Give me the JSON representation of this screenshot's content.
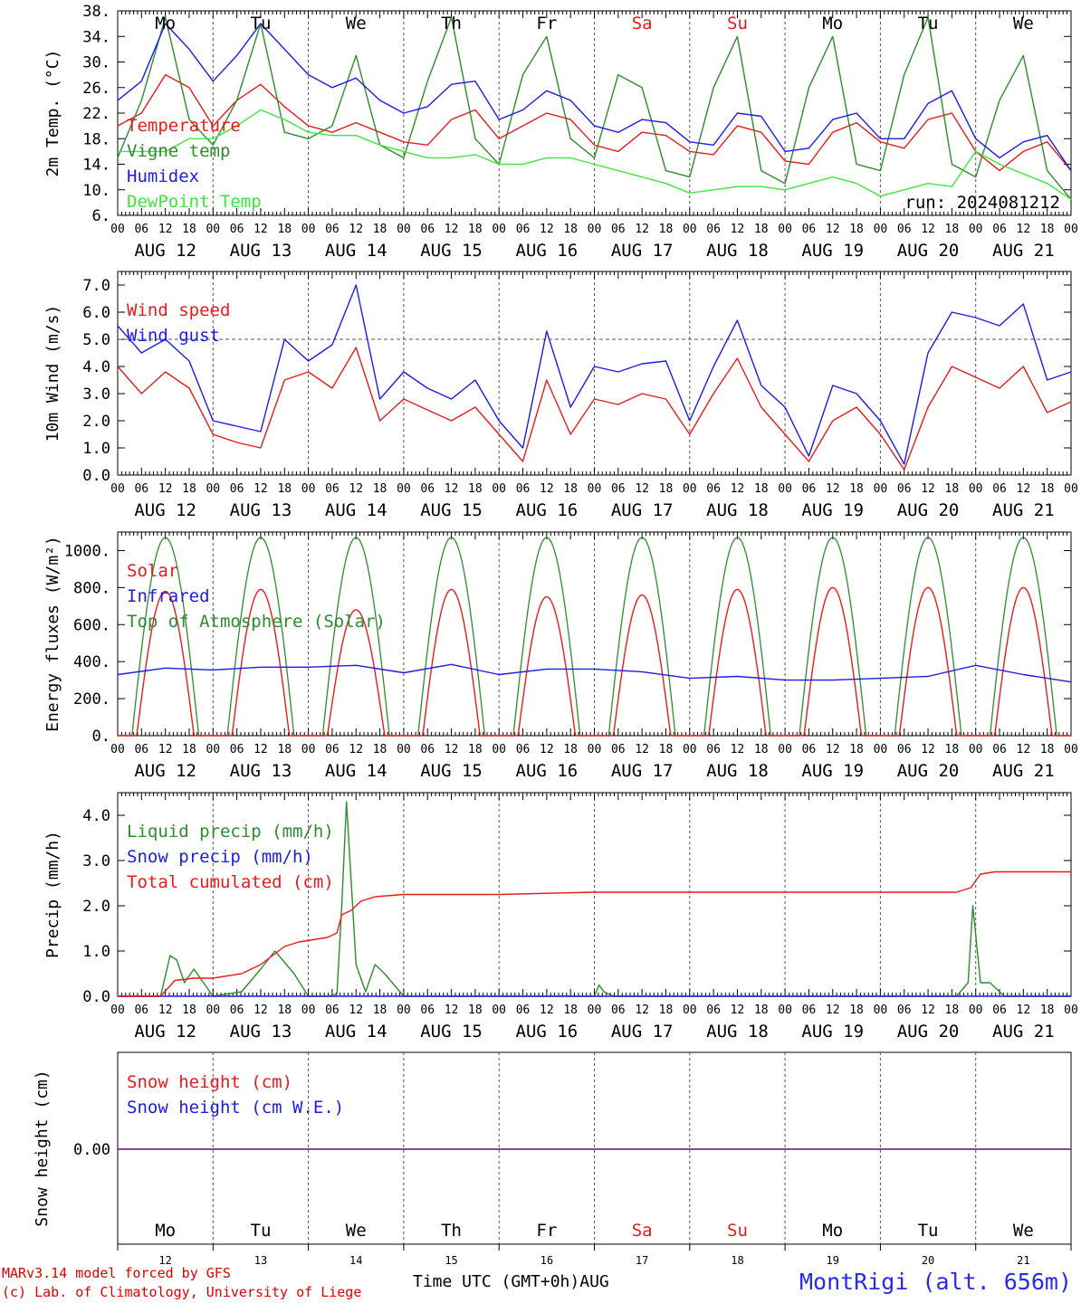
{
  "chart_data": [
    {
      "type": "line",
      "ylabel": "2m Temp. (°C)",
      "ylim": [
        6,
        38
      ],
      "yticks": [
        "6.",
        "10.",
        "14.",
        "18.",
        "22.",
        "26.",
        "30.",
        "34.",
        "38."
      ],
      "day_labels_top": [
        "Mo",
        "Tu",
        "We",
        "Th",
        "Fr",
        "Sa",
        "Su",
        "Mo",
        "Tu",
        "We"
      ],
      "date_labels": [
        "AUG 12",
        "AUG 13",
        "AUG 14",
        "AUG 15",
        "AUG 16",
        "AUG 17",
        "AUG 18",
        "AUG 19",
        "AUG 20",
        "AUG 21"
      ],
      "hour_ticks": [
        "00",
        "06",
        "12",
        "18"
      ],
      "annotation": "run: 2024081212",
      "series": [
        {
          "name": "Temperature",
          "color": "#e81c1c",
          "x": [
            0,
            0.25,
            0.5,
            0.75,
            1,
            1.25,
            1.5,
            1.75,
            2,
            2.25,
            2.5,
            2.75,
            3,
            3.25,
            3.5,
            3.75,
            4,
            4.25,
            4.5,
            4.75,
            5,
            5.25,
            5.5,
            5.75,
            6,
            6.25,
            6.5,
            6.75,
            7,
            7.25,
            7.5,
            7.75,
            8,
            8.25,
            8.5,
            8.75,
            9,
            9.25,
            9.5,
            9.75,
            10
          ],
          "y": [
            20,
            22,
            28,
            26,
            20,
            24,
            26.5,
            23,
            20,
            19,
            20.5,
            19,
            17.5,
            17,
            21,
            22.5,
            18,
            20,
            22,
            21,
            17,
            16,
            19,
            18.5,
            16,
            15.5,
            20,
            19,
            14.5,
            14,
            19,
            20.5,
            17.5,
            16.5,
            21,
            22,
            16,
            13,
            16,
            17.5,
            13
          ]
        },
        {
          "name": "Vigne temp",
          "color": "#2e8b2e",
          "x": [
            0,
            0.25,
            0.5,
            0.75,
            1,
            1.25,
            1.5,
            1.75,
            2,
            2.25,
            2.5,
            2.75,
            3,
            3.25,
            3.5,
            3.75,
            4,
            4.25,
            4.5,
            4.75,
            5,
            5.25,
            5.5,
            5.75,
            6,
            6.25,
            6.5,
            6.75,
            7,
            7.25,
            7.5,
            7.75,
            8,
            8.25,
            8.5,
            8.75,
            9,
            9.25,
            9.5,
            9.75,
            10
          ],
          "y": [
            15,
            24,
            37,
            21,
            17,
            24,
            36,
            19,
            18,
            20,
            31,
            17,
            15,
            27,
            37,
            18,
            14,
            28,
            34,
            18,
            15,
            28,
            26,
            13,
            12,
            26,
            34,
            13,
            11,
            26,
            34,
            14,
            13,
            28,
            37,
            14,
            12,
            24,
            31,
            13,
            8.5
          ]
        },
        {
          "name": "Humidex",
          "color": "#1c1ce8",
          "x": [
            0,
            0.25,
            0.5,
            0.75,
            1,
            1.25,
            1.5,
            1.75,
            2,
            2.25,
            2.5,
            2.75,
            3,
            3.25,
            3.5,
            3.75,
            4,
            4.25,
            4.5,
            4.75,
            5,
            5.25,
            5.5,
            5.75,
            6,
            6.25,
            6.5,
            6.75,
            7,
            7.25,
            7.5,
            7.75,
            8,
            8.25,
            8.5,
            8.75,
            9,
            9.25,
            9.5,
            9.75,
            10
          ],
          "y": [
            24,
            27,
            36,
            32,
            27,
            31,
            36,
            32,
            28,
            26,
            27.5,
            24,
            22,
            23,
            26.5,
            27,
            21,
            22.5,
            25.5,
            24,
            20,
            19,
            21,
            20.5,
            17.5,
            17,
            22,
            21.5,
            16,
            16.5,
            21,
            22,
            18,
            18,
            23.5,
            25.5,
            18,
            15,
            17.5,
            18.5,
            13
          ]
        },
        {
          "name": "DewPoint Temp",
          "color": "#3ce83c",
          "x": [
            0,
            0.25,
            0.5,
            0.75,
            1,
            1.25,
            1.5,
            1.75,
            2,
            2.25,
            2.5,
            2.75,
            3,
            3.25,
            3.5,
            3.75,
            4,
            4.25,
            4.5,
            4.75,
            5,
            5.25,
            5.5,
            5.75,
            6,
            6.25,
            6.5,
            6.75,
            7,
            7.25,
            7.5,
            7.75,
            8,
            8.25,
            8.5,
            8.75,
            9,
            9.25,
            9.5,
            9.75,
            10
          ],
          "y": [
            16,
            16,
            16,
            18,
            18,
            20,
            22.5,
            21,
            19,
            18.5,
            18.5,
            17,
            16,
            15,
            15,
            15.5,
            14,
            14,
            15,
            15,
            14,
            13,
            12,
            11,
            9.5,
            10,
            10.5,
            10.5,
            10,
            11,
            12,
            11,
            9,
            10,
            11,
            10.5,
            16,
            14,
            12.5,
            11,
            8.5
          ]
        }
      ]
    },
    {
      "type": "line",
      "ylabel": "10m Wind (m/s)",
      "ylim": [
        0,
        7.5
      ],
      "yticks": [
        "0.0",
        "1.0",
        "2.0",
        "3.0",
        "4.0",
        "5.0",
        "6.0",
        "7.0"
      ],
      "date_labels": [
        "AUG 12",
        "AUG 13",
        "AUG 14",
        "AUG 15",
        "AUG 16",
        "AUG 17",
        "AUG 18",
        "AUG 19",
        "AUG 20",
        "AUG 21"
      ],
      "hour_ticks": [
        "00",
        "06",
        "12",
        "18"
      ],
      "reference_line": 5.0,
      "series": [
        {
          "name": "Wind speed",
          "color": "#e81c1c",
          "x": [
            0,
            0.25,
            0.5,
            0.75,
            1,
            1.25,
            1.5,
            1.75,
            2,
            2.25,
            2.5,
            2.75,
            3,
            3.25,
            3.5,
            3.75,
            4,
            4.25,
            4.5,
            4.75,
            5,
            5.25,
            5.5,
            5.75,
            6,
            6.25,
            6.5,
            6.75,
            7,
            7.25,
            7.5,
            7.75,
            8,
            8.25,
            8.5,
            8.75,
            9,
            9.25,
            9.5,
            9.75,
            10
          ],
          "y": [
            4.0,
            3.0,
            3.8,
            3.2,
            1.5,
            1.2,
            1.0,
            3.5,
            3.8,
            3.2,
            4.7,
            2.0,
            2.8,
            2.4,
            2.0,
            2.5,
            1.5,
            0.5,
            3.5,
            1.5,
            2.8,
            2.6,
            3.0,
            2.8,
            1.5,
            3.0,
            4.3,
            2.5,
            1.5,
            0.5,
            2.0,
            2.5,
            1.5,
            0.2,
            2.5,
            4.0,
            3.6,
            3.2,
            4.0,
            2.3,
            2.7
          ]
        },
        {
          "name": "Wind gust",
          "color": "#1c1ce8",
          "x": [
            0,
            0.25,
            0.5,
            0.75,
            1,
            1.25,
            1.5,
            1.75,
            2,
            2.25,
            2.5,
            2.75,
            3,
            3.25,
            3.5,
            3.75,
            4,
            4.25,
            4.5,
            4.75,
            5,
            5.25,
            5.5,
            5.75,
            6,
            6.25,
            6.5,
            6.75,
            7,
            7.25,
            7.5,
            7.75,
            8,
            8.25,
            8.5,
            8.75,
            9,
            9.25,
            9.5,
            9.75,
            10
          ],
          "y": [
            5.5,
            4.5,
            5.0,
            4.2,
            2.0,
            1.8,
            1.6,
            5.0,
            4.2,
            4.8,
            7.0,
            2.8,
            3.8,
            3.2,
            2.8,
            3.5,
            2.0,
            1.0,
            5.3,
            2.5,
            4.0,
            3.8,
            4.1,
            4.2,
            2.0,
            4.0,
            5.7,
            3.3,
            2.5,
            0.7,
            3.3,
            3.0,
            2.0,
            0.4,
            4.5,
            6.0,
            5.8,
            5.5,
            6.3,
            3.5,
            3.8
          ]
        }
      ]
    },
    {
      "type": "line",
      "ylabel": "Energy fluxes (W/m²)",
      "ylim": [
        0,
        1100
      ],
      "yticks": [
        "0.",
        "200.",
        "400.",
        "600.",
        "800.",
        "1000."
      ],
      "date_labels": [
        "AUG 12",
        "AUG 13",
        "AUG 14",
        "AUG 15",
        "AUG 16",
        "AUG 17",
        "AUG 18",
        "AUG 19",
        "AUG 20",
        "AUG 21"
      ],
      "hour_ticks": [
        "00",
        "06",
        "12",
        "18"
      ],
      "series": [
        {
          "name": "Solar",
          "color": "#e81c1c",
          "solar_peaks": [
            780,
            790,
            680,
            790,
            750,
            760,
            790,
            800,
            800,
            800
          ]
        },
        {
          "name": "Infrared",
          "color": "#1c1ce8",
          "x": [
            0,
            0.5,
            1,
            1.5,
            2,
            2.5,
            3,
            3.5,
            4,
            4.5,
            5,
            5.5,
            6,
            6.5,
            7,
            7.5,
            8,
            8.5,
            9,
            9.5,
            10
          ],
          "y": [
            330,
            365,
            355,
            370,
            370,
            380,
            340,
            385,
            330,
            360,
            360,
            345,
            310,
            320,
            300,
            300,
            310,
            320,
            380,
            330,
            290
          ]
        },
        {
          "name": "Top of Atmosphere (Solar)",
          "color": "#2e8b2e",
          "peak": 1070
        }
      ]
    },
    {
      "type": "line",
      "ylabel": "Precip (mm/h)",
      "ylim": [
        0,
        4.5
      ],
      "yticks": [
        "0.0",
        "1.0",
        "2.0",
        "3.0",
        "4.0"
      ],
      "date_labels": [
        "AUG 12",
        "AUG 13",
        "AUG 14",
        "AUG 15",
        "AUG 16",
        "AUG 17",
        "AUG 18",
        "AUG 19",
        "AUG 20",
        "AUG 21"
      ],
      "hour_ticks": [
        "00",
        "06",
        "12",
        "18"
      ],
      "series": [
        {
          "name": "Liquid precip (mm/h)",
          "color": "#2e8b2e",
          "x": [
            0,
            0.45,
            0.55,
            0.62,
            0.7,
            0.8,
            1.0,
            1.3,
            1.5,
            1.65,
            1.85,
            2.0,
            2.2,
            2.3,
            2.35,
            2.4,
            2.5,
            2.6,
            2.7,
            2.8,
            3.0,
            4.0,
            5.0,
            5.05,
            5.1,
            5.2,
            8.0,
            8.8,
            8.92,
            8.97,
            9.05,
            9.15,
            9.3,
            10
          ],
          "y": [
            0,
            0,
            0.9,
            0.8,
            0.3,
            0.6,
            0,
            0.1,
            0.6,
            1.0,
            0.5,
            0,
            0,
            0.05,
            2.0,
            4.3,
            0.7,
            0.1,
            0.7,
            0.5,
            0,
            0,
            0,
            0.25,
            0.1,
            0,
            0,
            0,
            0.3,
            2.0,
            0.3,
            0.3,
            0,
            0
          ]
        },
        {
          "name": "Snow precip (mm/h)",
          "color": "#1c1ce8",
          "x": [
            0,
            10
          ],
          "y": [
            0,
            0
          ]
        },
        {
          "name": "Total cumulated (cm)",
          "color": "#e81c1c",
          "x": [
            0,
            0.45,
            0.6,
            0.8,
            1.0,
            1.3,
            1.5,
            1.75,
            1.9,
            2.2,
            2.3,
            2.35,
            2.45,
            2.55,
            2.7,
            3.0,
            4.0,
            5.0,
            6.0,
            7.0,
            8.0,
            8.8,
            8.95,
            9.05,
            9.2,
            10
          ],
          "y": [
            0,
            0,
            0.35,
            0.4,
            0.4,
            0.5,
            0.7,
            1.1,
            1.2,
            1.3,
            1.4,
            1.8,
            1.9,
            2.1,
            2.2,
            2.25,
            2.25,
            2.3,
            2.3,
            2.3,
            2.3,
            2.3,
            2.4,
            2.7,
            2.75,
            2.75
          ]
        }
      ]
    },
    {
      "type": "line",
      "ylabel": "Snow height (cm)",
      "ytick": "0.00",
      "day_labels_bottom": [
        "Mo",
        "Tu",
        "We",
        "Th",
        "Fr",
        "Sa",
        "Su",
        "Mo",
        "Tu",
        "We"
      ],
      "day_numbers": [
        "12",
        "13",
        "14",
        "15",
        "16",
        "17",
        "18",
        "19",
        "20",
        "21"
      ],
      "series": [
        {
          "name": "Snow height (cm)",
          "color": "#e81c1c",
          "x": [
            0,
            10
          ],
          "y": [
            0,
            0
          ]
        },
        {
          "name": "Snow height (cm W.E.)",
          "color": "#1c1ce8",
          "x": [
            0,
            10
          ],
          "y": [
            0,
            0
          ]
        }
      ]
    }
  ],
  "weekend_color": "#e81c1c",
  "footer": {
    "credit_line1": "MARv3.14 model forced by GFS",
    "credit_line2": "(c) Lab. of Climatology, University of Liege",
    "xlabel": "Time UTC (GMT+0h)",
    "month": "AUG",
    "station": "MontRigi (alt. 656m)"
  }
}
